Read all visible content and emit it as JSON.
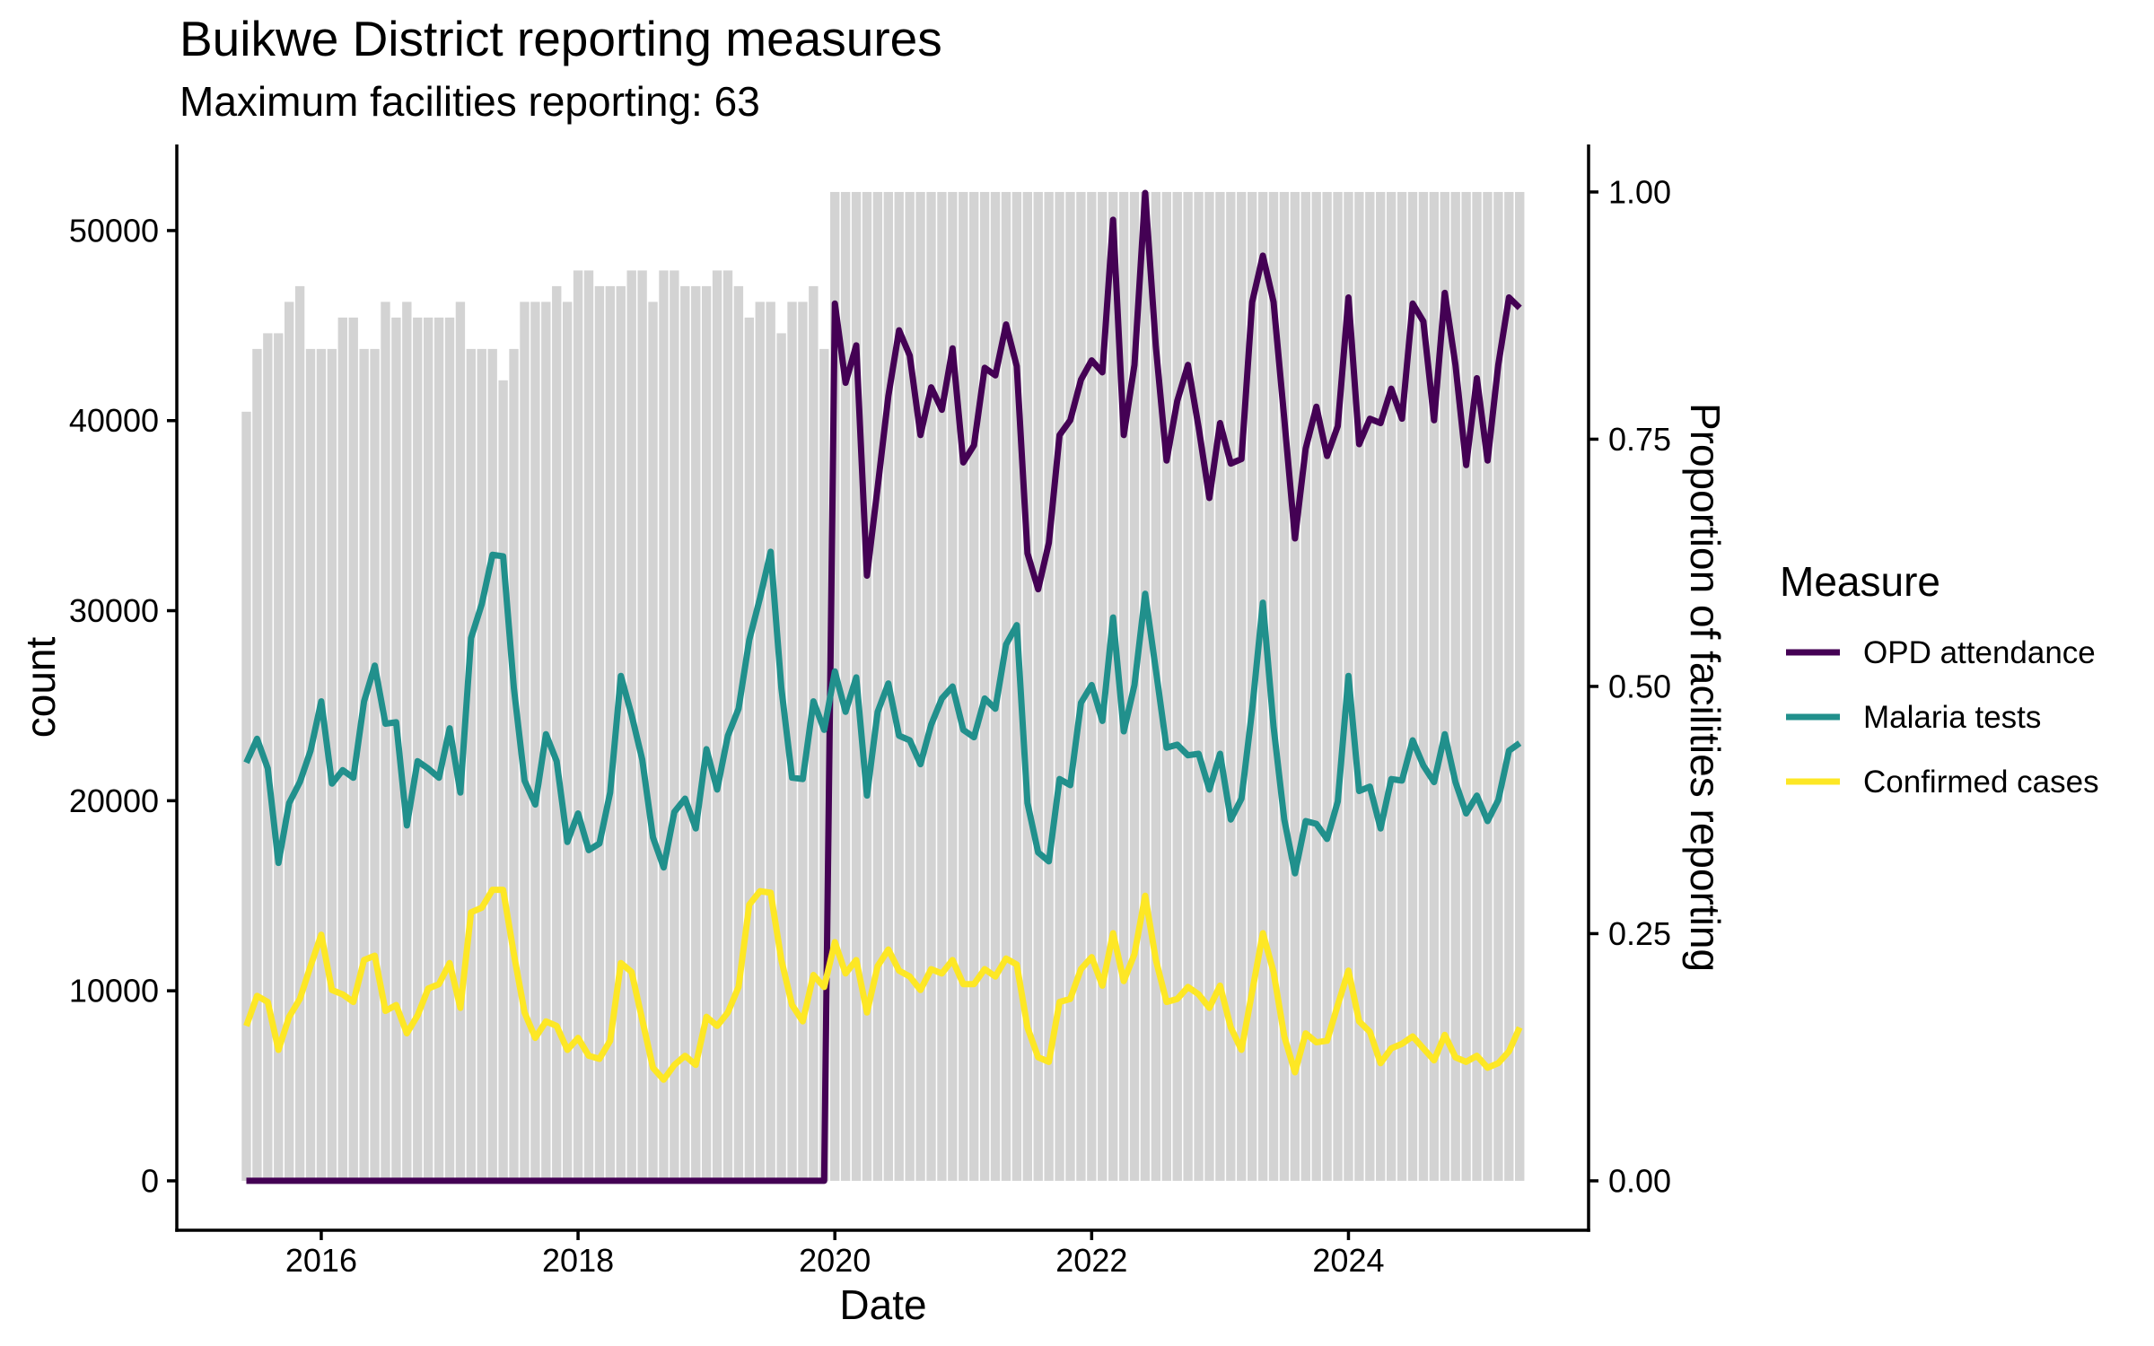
{
  "chart_data": {
    "type": "line",
    "title": "Buikwe District reporting measures",
    "subtitle": "Maximum facilities reporting: 63",
    "xlabel": "Date",
    "ylabel": "count",
    "y2label": "Proportion of facilities reporting",
    "grid": false,
    "xlim": [
      2014.875,
      2025.87
    ],
    "ylim": [
      -2600,
      54530
    ],
    "x_ticks": [
      {
        "value": 2016,
        "label": "2016"
      },
      {
        "value": 2018,
        "label": "2018"
      },
      {
        "value": 2020,
        "label": "2020"
      },
      {
        "value": 2022,
        "label": "2022"
      },
      {
        "value": 2024,
        "label": "2024"
      }
    ],
    "y_ticks": [
      {
        "value": 0,
        "label": "0"
      },
      {
        "value": 10000,
        "label": "10000"
      },
      {
        "value": 20000,
        "label": "20000"
      },
      {
        "value": 30000,
        "label": "30000"
      },
      {
        "value": 40000,
        "label": "40000"
      },
      {
        "value": 50000,
        "label": "50000"
      }
    ],
    "secondary_axis": {
      "scale": 52030,
      "ticks": [
        {
          "value": 0,
          "label": "0.00"
        },
        {
          "value": 0.25,
          "label": "0.25"
        },
        {
          "value": 0.5,
          "label": "0.50"
        },
        {
          "value": 0.75,
          "label": "0.75"
        },
        {
          "value": 1.0,
          "label": "1.00"
        }
      ]
    },
    "legend": {
      "title": "Measure",
      "position": "right"
    },
    "bar_color": "#D3D3D3",
    "facilities_max": 63,
    "x": [
      "2015-06",
      "2015-07",
      "2015-08",
      "2015-09",
      "2015-10",
      "2015-11",
      "2015-12",
      "2016-01",
      "2016-02",
      "2016-03",
      "2016-04",
      "2016-05",
      "2016-06",
      "2016-07",
      "2016-08",
      "2016-09",
      "2016-10",
      "2016-11",
      "2016-12",
      "2017-01",
      "2017-02",
      "2017-03",
      "2017-04",
      "2017-05",
      "2017-06",
      "2017-07",
      "2017-08",
      "2017-09",
      "2017-10",
      "2017-11",
      "2017-12",
      "2018-01",
      "2018-02",
      "2018-03",
      "2018-04",
      "2018-05",
      "2018-06",
      "2018-07",
      "2018-08",
      "2018-09",
      "2018-10",
      "2018-11",
      "2018-12",
      "2019-01",
      "2019-02",
      "2019-03",
      "2019-04",
      "2019-05",
      "2019-06",
      "2019-07",
      "2019-08",
      "2019-09",
      "2019-10",
      "2019-11",
      "2019-12",
      "2020-01",
      "2020-02",
      "2020-03",
      "2020-04",
      "2020-05",
      "2020-06",
      "2020-07",
      "2020-08",
      "2020-09",
      "2020-10",
      "2020-11",
      "2020-12",
      "2021-01",
      "2021-02",
      "2021-03",
      "2021-04",
      "2021-05",
      "2021-06",
      "2021-07",
      "2021-08",
      "2021-09",
      "2021-10",
      "2021-11",
      "2021-12",
      "2022-01",
      "2022-02",
      "2022-03",
      "2022-04",
      "2022-05",
      "2022-06",
      "2022-07",
      "2022-08",
      "2022-09",
      "2022-10",
      "2022-11",
      "2022-12",
      "2023-01",
      "2023-02",
      "2023-03",
      "2023-04",
      "2023-05",
      "2023-06",
      "2023-07",
      "2023-08",
      "2023-09",
      "2023-10",
      "2023-11",
      "2023-12",
      "2024-01",
      "2024-02",
      "2024-03",
      "2024-04",
      "2024-05",
      "2024-06",
      "2024-07",
      "2024-08",
      "2024-09",
      "2024-10",
      "2024-11",
      "2024-12",
      "2025-01",
      "2025-02",
      "2025-03",
      "2025-04",
      "2025-05"
    ],
    "facilities_reporting": [
      49,
      53,
      54,
      54,
      56,
      57,
      53,
      53,
      53,
      55,
      55,
      53,
      53,
      56,
      55,
      56,
      55,
      55,
      55,
      55,
      56,
      53,
      53,
      53,
      51,
      53,
      56,
      56,
      56,
      57,
      56,
      58,
      58,
      57,
      57,
      57,
      58,
      58,
      56,
      58,
      58,
      57,
      57,
      57,
      58,
      58,
      57,
      55,
      56,
      56,
      54,
      56,
      56,
      57,
      53,
      63,
      63,
      63,
      63,
      63,
      63,
      63,
      63,
      63,
      63,
      63,
      63,
      63,
      63,
      63,
      63,
      63,
      63,
      63,
      63,
      63,
      63,
      63,
      63,
      63,
      63,
      63,
      63,
      63,
      63,
      63,
      63,
      63,
      63,
      63,
      63,
      63,
      63,
      63,
      63,
      63,
      63,
      63,
      63,
      63,
      63,
      63,
      63,
      63,
      63,
      63,
      63,
      63,
      63,
      63,
      63,
      63,
      63,
      63,
      63,
      63,
      63,
      63,
      63,
      63
    ],
    "series": [
      {
        "name": "OPD attendance",
        "color": "#440154",
        "values": [
          0,
          0,
          0,
          0,
          0,
          0,
          0,
          0,
          0,
          0,
          0,
          0,
          0,
          0,
          0,
          0,
          0,
          0,
          0,
          0,
          0,
          0,
          0,
          0,
          0,
          0,
          0,
          0,
          0,
          0,
          0,
          0,
          0,
          0,
          0,
          0,
          0,
          0,
          0,
          0,
          0,
          0,
          0,
          0,
          0,
          0,
          0,
          0,
          0,
          0,
          0,
          0,
          0,
          0,
          0,
          46160,
          41990,
          43960,
          31840,
          36500,
          41300,
          44750,
          43420,
          39240,
          41750,
          40570,
          43800,
          37800,
          38700,
          42780,
          42380,
          45060,
          42860,
          33020,
          31130,
          33570,
          39240,
          40020,
          42150,
          43170,
          42540,
          50570,
          39240,
          42930,
          51980,
          43880,
          37900,
          41040,
          42930,
          39630,
          35930,
          39870,
          37740,
          37980,
          46240,
          48680,
          46240,
          40100,
          33800,
          38530,
          40730,
          38140,
          39710,
          46480,
          38760,
          40100,
          39870,
          41680,
          40100,
          46160,
          45220,
          40020,
          46720,
          42930,
          37660,
          42230,
          37900,
          42930,
          46480,
          45930
        ]
      },
      {
        "name": "Malaria tests",
        "color": "#21908C",
        "values": [
          22000,
          23260,
          21700,
          16730,
          19880,
          20980,
          22630,
          25230,
          20900,
          21610,
          21210,
          25230,
          27110,
          24050,
          24130,
          18700,
          22080,
          21690,
          21210,
          23810,
          20430,
          28560,
          30340,
          32940,
          32860,
          25930,
          21060,
          19800,
          23500,
          22080,
          17830,
          19330,
          17400,
          17750,
          20430,
          26570,
          24520,
          22160,
          18070,
          16490,
          19410,
          20110,
          18540,
          22710,
          20590,
          23420,
          24840,
          28460,
          30660,
          33100,
          25930,
          21210,
          21140,
          25230,
          23730,
          26800,
          24680,
          26490,
          20270,
          24680,
          26170,
          23420,
          23180,
          21920,
          24000,
          25380,
          26010,
          23730,
          23340,
          25380,
          24840,
          28220,
          29240,
          19880,
          17280,
          16810,
          21140,
          20820,
          25150,
          26090,
          24200,
          29640,
          23650,
          26090,
          30890,
          26880,
          22790,
          22950,
          22390,
          22470,
          20590,
          22470,
          19010,
          20110,
          24800,
          30420,
          23890,
          19010,
          16180,
          18930,
          18780,
          17990,
          19960,
          26570,
          20510,
          20740,
          18540,
          21140,
          21060,
          23180,
          21850,
          20980,
          23500,
          20980,
          19330,
          20270,
          18930,
          20030,
          22630,
          23030
        ]
      },
      {
        "name": "Confirmed cases",
        "color": "#FDE725",
        "values": [
          8150,
          9730,
          9410,
          6890,
          8630,
          9570,
          11300,
          12950,
          10040,
          9810,
          9410,
          11620,
          11850,
          8940,
          9250,
          7760,
          8700,
          10120,
          10350,
          11460,
          9100,
          14130,
          14370,
          15310,
          15310,
          11930,
          8860,
          7520,
          8390,
          8150,
          6890,
          7520,
          6580,
          6420,
          7370,
          11460,
          10990,
          8470,
          5950,
          5320,
          6100,
          6580,
          6100,
          8630,
          8150,
          8860,
          10200,
          14530,
          15240,
          15160,
          11620,
          9250,
          8390,
          10830,
          10200,
          12560,
          10910,
          11620,
          8860,
          11300,
          12170,
          11060,
          10750,
          10040,
          11140,
          10910,
          11620,
          10350,
          10350,
          11140,
          10750,
          11700,
          11380,
          8070,
          6500,
          6260,
          9410,
          9570,
          11140,
          11770,
          10270,
          13030,
          10510,
          11930,
          15000,
          11620,
          9410,
          9570,
          10200,
          9810,
          9100,
          10270,
          8070,
          6890,
          9950,
          13030,
          10990,
          7600,
          5710,
          7760,
          7290,
          7370,
          9250,
          11060,
          8390,
          7840,
          6190,
          6970,
          7210,
          7600,
          6970,
          6340,
          7680,
          6500,
          6260,
          6580,
          5950,
          6190,
          6810,
          8070
        ]
      }
    ]
  }
}
